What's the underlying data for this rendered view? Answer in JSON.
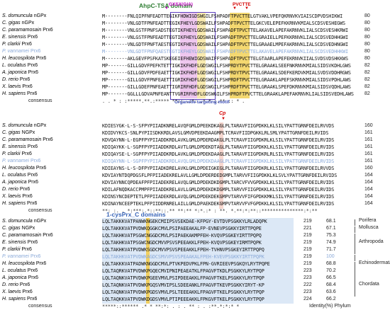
{
  "title_labels": {
    "domain1": "AhpC-TSA domain",
    "motif_gxsx": "GXSX(G/A)",
    "motif_pvctte": "PVCTTE",
    "organelle": "Organelle targeting motif",
    "cp": "Cp",
    "domain2": "1-cysPrx_C domains"
  },
  "colors": {
    "domain_green": "#2e7d32",
    "motif_magenta": "#c000c0",
    "pvctte_red": "#d40000",
    "catalytic_yellow": "#f2d060",
    "domain_blue_fill": "#dce8f6",
    "highlight_species": "#8aa9d8"
  },
  "block1": {
    "rows": [
      {
        "species": "S. domuncula nGPx",
        "seq": "M--------FNLQIPFNFEADTTEGIKFHDWIGDSWGILFSHPADFTPVCTTELGTVAKLVPEFQKRNVKVIAISCDPVDSHIKWI",
        "end": "80"
      },
      {
        "species": "C. gigas nGPx",
        "seq": "M--------VNLGDTFPNFEADTTEGIKFHEYLGDSWAILFSHPADFTPVCTTELGKCVELEPEFKKRNVKMIALSCDSVESHEGWS",
        "end": "80"
      },
      {
        "species": "C. paramamosain Prx6",
        "seq": "M--------VNLGSTFPNFSADSTEGTIKFHEYLGDSWAILFSHPADFTPVCTTELAKAVELAPEFAKRNVKLIALSCDSVESHKRWI",
        "end": "80"
      },
      {
        "species": "E. sinensis Prx6",
        "seq": "M--------VNLGSTFPNFEADTTEGTIKFHEYLGDSWAILFSHPADFTPVCTTELGRAIELLPEFKKRNVKLIALSCDSVEDHHGWI",
        "end": "80"
      },
      {
        "species": "P. clarkii Prx6",
        "seq": "M--------VNLGDTFPNFTAESTEGTIKFHEYLGDSWAILFSHPADFTPVCTTELGRAAELMPEFAKRNVKLIALSCDSVEDHNGWI",
        "end": "80"
      },
      {
        "species": "P. vannamei Prx6",
        "seq": "M--------VNLGDTFPNFQAESTEGTIKFHEYLGDSWAILFSHPADFTPVCTTELAKAVELAPEFAKRNVKLIALSCDSVEDHHKWI",
        "end": "80",
        "highlight": true
      },
      {
        "species": "H. leucospilota Prx6",
        "seq": "M--------AKLGEVFPSFKATSKEGEIEFHEWIGDSWAIFFSHPADFTPVCTTELGTAARLAPEFEKRNVKIIALSVDSVDSHKKWS",
        "end": "80"
      },
      {
        "species": "L. oculatus Prx6",
        "seq": "MP-------GILLGDVFPEFKTETTIGKIKFHDFLGDSWGILFSHPRDYTPVCTTELGRAAKLSEEFNKRNVKMIALSIDSVKDHLGWS",
        "end": "82"
      },
      {
        "species": "A. japonica Prx6",
        "seq": "MP-------GILLGDVFPDFEAETTIGKIKFHDFLGDSWGILFSHPRDYTPVCTTELGRAAKLSDEFKERDVKMIALSVDSVDDHRGWS",
        "end": "82"
      },
      {
        "species": "D. rerio Prx6",
        "seq": "MP-------GILLGDVFPNFEAETTIGRIKFHDFLGDSWGILFSHPRDFTPVCTTELGRAAKLAPEFSKRNVKMIALSIDSVPDHLAWS",
        "end": "82"
      },
      {
        "species": "X. laevis Prx6",
        "seq": "MP-------GILLGDEFPNFEAETTIGRIRFHDFLGDSWGILFSHPRDFTPVCTTELGRAAKLSPEFDKRNVKMIALSIDSVQDHLAWS",
        "end": "82"
      },
      {
        "species": "H. sapiens Prx6",
        "seq": "MP-------GGLLLGDVAPNFEANTTVGRIRFHDFLGDSWGILFSHPRDFTPVCTTELGRAAKLAPEFAKRNVKLIALSIDSVEDHLAWS",
        "end": "82"
      }
    ],
    "consensus_label": "consensus",
    "consensus": "              .      . *  :  :*****.**.:***** **:: .:*:  .*   * :.** ::  *  ."
  },
  "block2": {
    "rows": [
      {
        "species": "S. domuncula nGPx",
        "seq": "KDIESYGK-L-S-SFPYPIIADKNRELAVQFGMLDPEEKDKAGLPLTARAVFIIGPDKKLKLSILYPATTGRNFDEILRVVDS",
        "end": "160"
      },
      {
        "species": "C. gigas NGPx",
        "seq": "KDIDVYKCS-SNLPYPIISDKKRDLAVSLGMVDPEEKDAAGMPLTCRAVFIIDPGKKLRLSMLYPATTGRNFDEILRVIDS",
        "end": "161"
      },
      {
        "species": "C. paramamosain Prx6",
        "seq": "KDVQAYNN-L-EGPFPYPIIADDKRDLAVKLGMLDPDERDAKGLPLTCRAVFIIGPDKRLKLSILYPATTGRNFDEILRVIDS",
        "end": "161"
      },
      {
        "species": "E. sinensis Prx6",
        "seq": "KDIQAYKK-L-SGPFPYPIIADDKRDLAVTLGMLDPDEKDTAGLPLTARAVFIIGPDKKLKLSILYPATTGRNFDEILRVIDS",
        "end": "161"
      },
      {
        "species": "P. clarkii Prx6",
        "seq": "KDIQAYSE-L-SGPFPYPIIADDKRDLAVKLGMLDPDEKDAAGLPLTARAVFIIGPDKRLRLSILYPATTGRNFDEILRVIDS",
        "end": "161"
      },
      {
        "species": "P. vannamei Prx6",
        "seq": "KDIQAYNN-L-SGPFPYPIIADDKRDLAVQLGMLDPDEKDAAGLPLTCRAVFIIGPDKKLKLSILYPATTGRNFDEILRVIDS",
        "end": "161",
        "highlight": true
      },
      {
        "species": "H. leucospilota Prx6",
        "seq": "KDIEAYNS-L-S-DFPYPIIADKDRELAVKLGMLDPDEIGKEGLPLTARAVFIIGPDKRLKLSILYPATTGRNFDEILRVVDS",
        "end": "160"
      },
      {
        "species": "L. oculatus Prx6",
        "seq": "KDVIAYNTDQPDGSFLPFPIIADEKRELAVLLGMLDPDERDEDGMPLTARVVFIIGPDKKLKLSVLYPATTGRNFDEILRVIDS",
        "end": "164"
      },
      {
        "species": "A. japonica Prx6",
        "seq": "KDVIAYNNCQPDEAFPFPIIADEKRELAVQLGMLDPDEKDKDGMPLTARCVFVVGPDKKLKLSILYPATTGRNFDEILRVIDS",
        "end": "164"
      },
      {
        "species": "D. rerio Prx6",
        "seq": "KDILAFNQDKACCPMPFPIIADDKRELAVLLGMLDPDEKDKDGMPLTARVVFIIGPDKKLKLSILYPATTGRNFDEILRVIDS",
        "end": "164"
      },
      {
        "species": "X. laevis Prx6",
        "seq": "KDINSYNCDEPTETLPFPIIADEKRDLAVQLGMLDPDEKDEKGMPVTARVVFIFGPDKKMKLSILYPATTGRNFDEILRVIDS",
        "end": "164"
      },
      {
        "species": "H. sapiens Prx6",
        "seq": "KDINAYNCEEPTEKLPFPIIDDRNRELAILLGMLDPAEKDEKGMPVTARVVFVFGPDKKLKLSILYPATTGRNFDEILRVIDS",
        "end": "164"
      }
    ],
    "consensus_label": "consensus",
    "consensus": "**:  :.     .  *:***:.*::**::.** **:**  *:*.:* : **. *.**:*:**::***************:*:**"
  },
  "block3": {
    "rows": [
      {
        "species": "S. domuncula nGPx",
        "seq": "LQLTAKKKVATPANWKNGEKCMIIPSVSEKDAE-KFPGY-EVTDVPSGKKYLRLADQPK",
        "end": "219",
        "ident": "68.1",
        "phylum": "Porifera"
      },
      {
        "species": "C. gigas NGPx",
        "seq": "LQLTAKKKVATPVDWKQGGKCMVLPSIPAEEAKALFP-EVNEVPSGKKYIRTTPQPE",
        "end": "221",
        "ident": "67.1",
        "phylum": "Mollusca"
      },
      {
        "species": "C. paramamosain Prx6",
        "seq": "LQLTAKHKVATPSGWCNGGDCMVLPSIPAEKAKMPFEH-KVQVPSGKEYIRTTPQPQ",
        "end": "219",
        "ident": "75.3",
        "phylum": ""
      },
      {
        "species": "E. sinensis Prx6",
        "seq": "LQLTAKHKVATPSGWCNGDCMVVPSVSPEEAKKLFPEH-KVQVPSGKEYIRMTPQPK",
        "end": "219",
        "ident": "74.9",
        "phylum": "Arthropoda"
      },
      {
        "species": "P. clarkii Prx6",
        "seq": "LQLTAKHKVATPVDWKSGDCMVVPSVSPEEAKKLFPEH-TVHNVPSGKEYIRTTPQPQ",
        "end": "219",
        "ident": "71.7",
        "phylum": ""
      },
      {
        "species": "P. vannamei Prx6",
        "seq": "LQLTAKHKVATPVDWKAGDCSMVVPSVSPEAAKALFPEH-KVEVPSGKKYIRTTPQPK",
        "end": "219",
        "ident": "100",
        "phylum": "",
        "highlight": true
      },
      {
        "species": "H. leucospilota Prx6",
        "seq": "LQLTAKKKVATPADWKNGGDCMVLPTVKPEDVPKLFPN-GVRIEEVPSGKQYLRYTPQPE",
        "end": "219",
        "ident": "68.8",
        "phylum": "Echinodermata"
      },
      {
        "species": "L. oculatus Prx6",
        "seq": "LQLTAQRKVATPVDWKPGQECMVIPNIPEAEATKLFPAGVFTKDLPSGKKYLRYTPQP",
        "end": "223",
        "ident": "70.2",
        "phylum": ""
      },
      {
        "species": "A. japonica Prx6",
        "seq": "LQLTAQNKVATPVDWKPGEEVMVLPSIPDEEAKKLFPAGVFTKELPSGKKYLRYTPQP",
        "end": "223",
        "ident": "66.5",
        "phylum": ""
      },
      {
        "species": "D. rerio Prx6",
        "seq": "LQLTAQNKVATPVDWKPGQSVMVIPSLSDEEANKLFPAGVFTKEVPSGKKYIRYT-KP",
        "end": "222",
        "ident": "68.4",
        "phylum": "Chordata"
      },
      {
        "species": "X. laevis Prx6",
        "seq": "LQLTAQNKVATPVDWKPGDSVMVLPSLTEEEAKKLFPAGVFTKELPSGKKYLRYTPQP",
        "end": "223",
        "ident": "63.6",
        "phylum": ""
      },
      {
        "species": "H. sapiens Prx6",
        "seq": "LQLTAQKKVATPVDWKDGDSVMVLPTIPEEEAKKLFPKGVFTKELPSGKKYLRYTPQP",
        "end": "224",
        "ident": "66.2",
        "phylum": ""
      }
    ],
    "consensus_label": "consensus",
    "consensus": "*****::****** .* *  **:*: . :  . ** :  .  :**.*:*:* *",
    "footer": "Identity(%) Phylum"
  }
}
